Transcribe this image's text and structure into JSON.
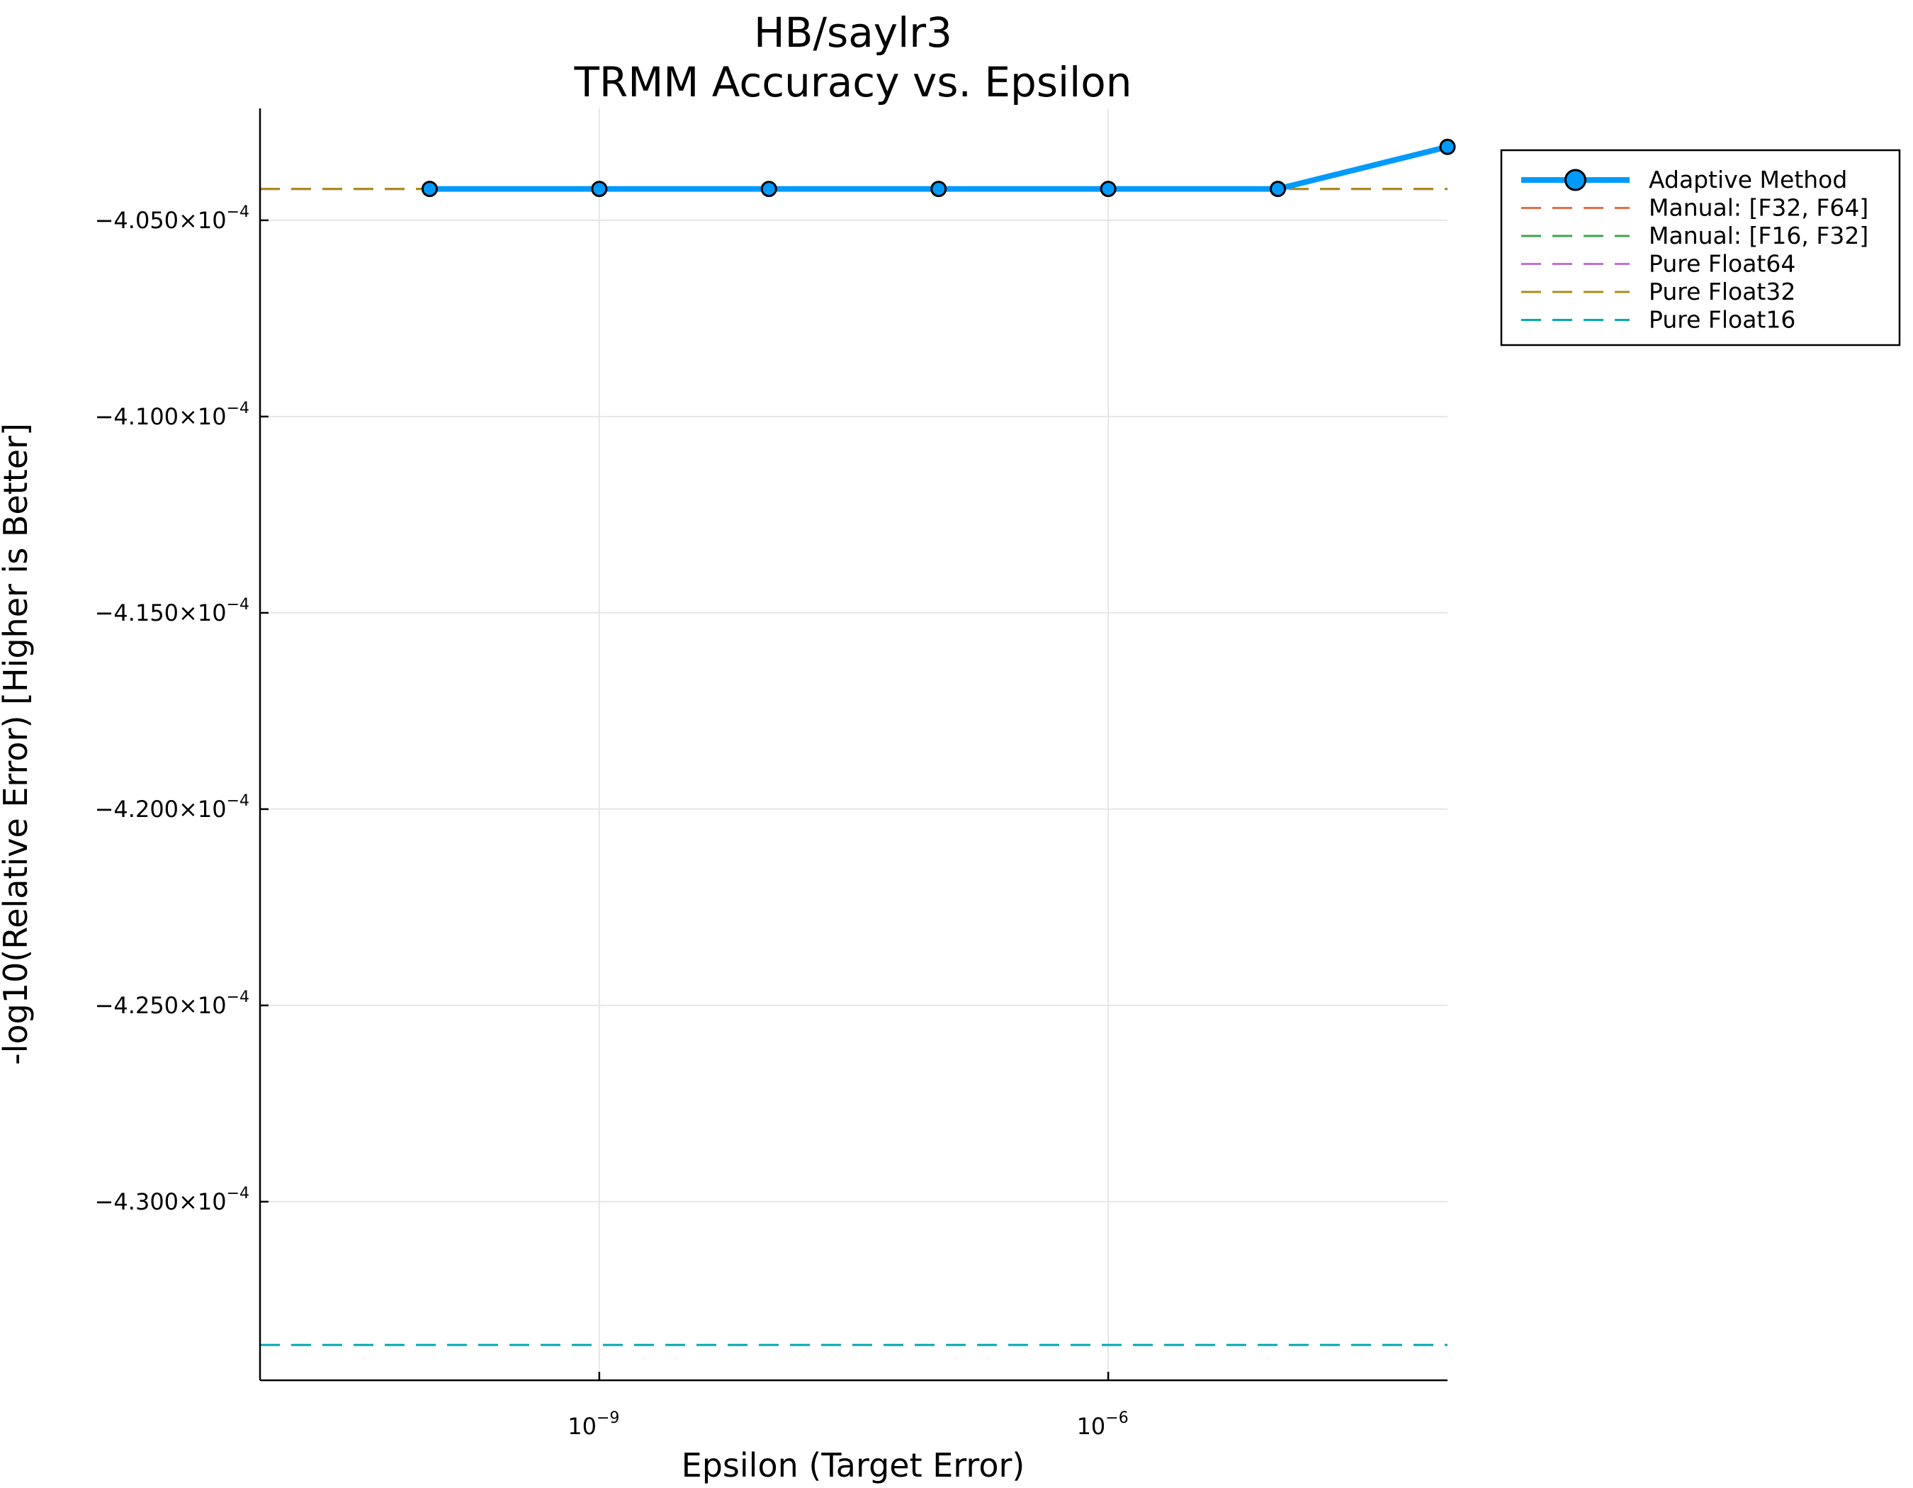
{
  "chart_data": {
    "type": "line",
    "title": "HB/saylr3",
    "subtitle": "TRMM Accuracy vs. Epsilon",
    "xlabel": "Epsilon (Target Error)",
    "ylabel": "-log10(Relative Error) [Higher is Better]",
    "x_scale": "log",
    "xlim": [
      1e-11,
      0.0001
    ],
    "ylim": [
      -0.00043455,
      -0.00040215
    ],
    "grid": true,
    "legend_position": "outside-top-right",
    "x_ticks": [
      {
        "value": 1e-09,
        "base": "10",
        "exp": "−9"
      },
      {
        "value": 1e-06,
        "base": "10",
        "exp": "−6"
      }
    ],
    "y_ticks": [
      {
        "value": -0.000405,
        "mantissa": "−4.050×10",
        "exp": "−4"
      },
      {
        "value": -0.00041,
        "mantissa": "−4.100×10",
        "exp": "−4"
      },
      {
        "value": -0.000415,
        "mantissa": "−4.150×10",
        "exp": "−4"
      },
      {
        "value": -0.00042,
        "mantissa": "−4.200×10",
        "exp": "−4"
      },
      {
        "value": -0.000425,
        "mantissa": "−4.250×10",
        "exp": "−4"
      },
      {
        "value": -0.00043,
        "mantissa": "−4.300×10",
        "exp": "−4"
      }
    ],
    "series": [
      {
        "name": "Adaptive Method",
        "style": "solid-marker",
        "color": "#009AFA",
        "x": [
          1e-10,
          1e-09,
          1e-08,
          1e-07,
          1e-06,
          1e-05,
          0.0001
        ],
        "y": [
          -0.0004042,
          -0.0004042,
          -0.0004042,
          -0.0004042,
          -0.0004042,
          -0.0004042,
          -0.00040313
        ]
      },
      {
        "name": "Manual: [F32, F64]",
        "style": "dashed-hline",
        "color": "#E36F47",
        "y": -0.0004042
      },
      {
        "name": "Manual: [F16, F32]",
        "style": "dashed-hline",
        "color": "#3EA44E",
        "y": -0.0004042
      },
      {
        "name": "Pure Float64",
        "style": "dashed-hline",
        "color": "#C271D2",
        "y": -0.0004042
      },
      {
        "name": "Pure Float32",
        "style": "dashed-hline",
        "color": "#AC8D18",
        "y": -0.0004042
      },
      {
        "name": "Pure Float16",
        "style": "dashed-hline",
        "color": "#00A9AD",
        "y": -0.00043365
      }
    ]
  }
}
